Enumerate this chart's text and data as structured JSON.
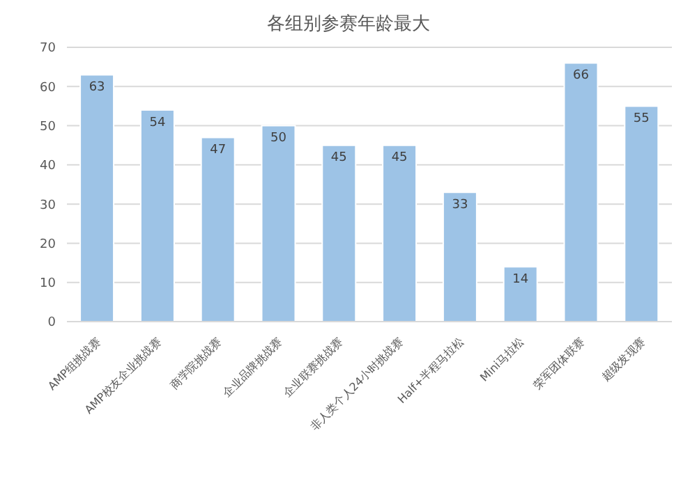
{
  "chart_data": {
    "type": "bar",
    "title": "各组别参赛年龄最大",
    "categories": [
      "AMP组挑战赛",
      "AMP校友企业挑战赛",
      "商学院挑战赛",
      "企业品牌挑战赛",
      "企业联赛挑战赛",
      "非人类个人24小时挑战赛",
      "Half+半程马拉松",
      "Mini马拉松",
      "荣军团体联赛",
      "超级发现赛"
    ],
    "values": [
      63,
      54,
      47,
      50,
      45,
      45,
      33,
      14,
      66,
      55
    ],
    "color": "#9dc3e6",
    "ylim": [
      0,
      70
    ],
    "yticks": [
      0,
      10,
      20,
      30,
      40,
      50,
      60,
      70
    ],
    "grid": "y",
    "data_labels": true
  }
}
